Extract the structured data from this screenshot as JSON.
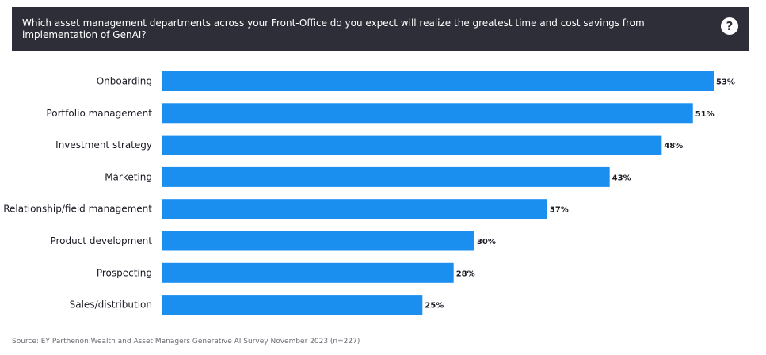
{
  "header": {
    "question": "Which asset management departments across your Front-Office do you expect will realize the greatest time and cost savings from implementation of GenAI?",
    "help_icon": "question-mark-circle-icon",
    "help_glyph": "?",
    "background_color": "#2e2e38"
  },
  "chart_data": {
    "type": "bar",
    "orientation": "horizontal",
    "categories": [
      "Onboarding",
      "Portfolio management",
      "Investment strategy",
      "Marketing",
      "Relationship/field management",
      "Product development",
      "Prospecting",
      "Sales/distribution"
    ],
    "values": [
      53,
      51,
      48,
      43,
      37,
      30,
      28,
      25
    ],
    "value_labels": [
      "53%",
      "51%",
      "48%",
      "43%",
      "37%",
      "30%",
      "28%",
      "25%"
    ],
    "unit": "%",
    "xlim": [
      0,
      53
    ],
    "grid": false,
    "bar_color": "#1a8ff0"
  },
  "source": "Source: EY Parthenon Wealth and Asset Managers Generative AI Survey November 2023 (n=227)"
}
